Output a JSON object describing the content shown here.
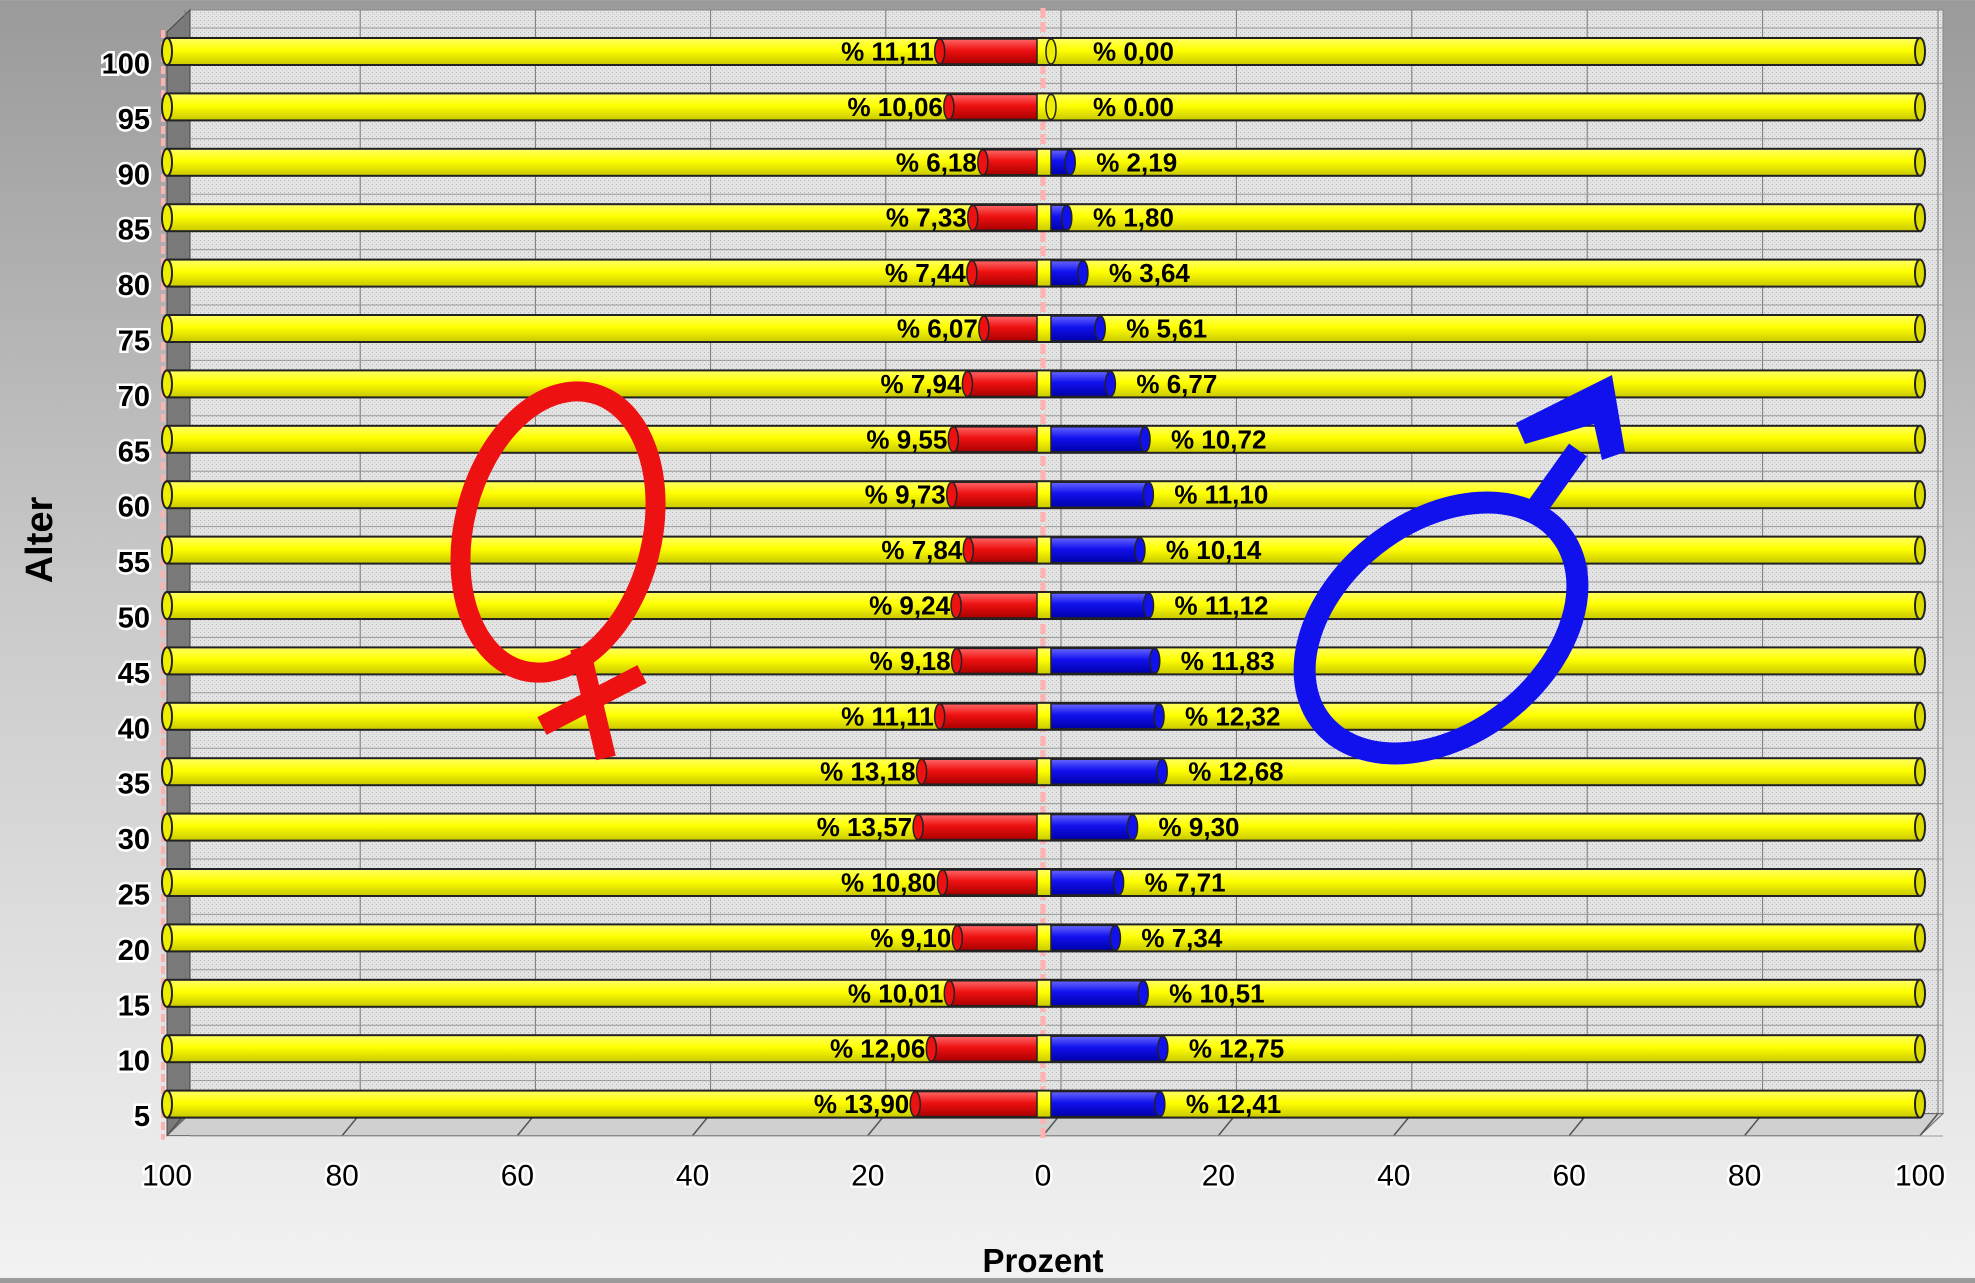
{
  "chart_data": {
    "type": "bar",
    "orientation": "horizontal-butterfly",
    "title": "",
    "xlabel": "Prozent",
    "ylabel": "Alter",
    "categories": [
      "5",
      "10",
      "15",
      "20",
      "25",
      "30",
      "35",
      "40",
      "45",
      "50",
      "55",
      "60",
      "65",
      "70",
      "75",
      "80",
      "85",
      "90",
      "95",
      "100"
    ],
    "x_ticks": [
      "100",
      "80",
      "60",
      "40",
      "20",
      "0",
      "20",
      "40",
      "60",
      "80",
      "100"
    ],
    "x_range_left": [
      100,
      0
    ],
    "x_range_right": [
      0,
      100
    ],
    "grid": true,
    "series": [
      {
        "side": "left",
        "color": "#ee1111",
        "values": [
          13.9,
          12.06,
          10.01,
          9.1,
          10.8,
          13.57,
          13.18,
          11.11,
          9.18,
          9.24,
          7.84,
          9.73,
          9.55,
          7.94,
          6.07,
          7.44,
          7.33,
          6.18,
          10.06,
          11.11
        ],
        "labels": [
          "% 13,90",
          "% 12,06",
          "% 10,01",
          "% 9,10",
          "% 10,80",
          "% 13,57",
          "% 13,18",
          "% 11,11",
          "% 9,18",
          "% 9,24",
          "% 7,84",
          "% 9,73",
          "% 9,55",
          "% 7,94",
          "% 6,07",
          "% 7,44",
          "% 7,33",
          "% 6,18",
          "% 10,06",
          "% 11,11"
        ]
      },
      {
        "side": "right",
        "color": "#1111ee",
        "values": [
          12.41,
          12.75,
          10.51,
          7.34,
          7.71,
          9.3,
          12.68,
          12.32,
          11.83,
          11.12,
          10.14,
          11.1,
          10.72,
          6.77,
          5.61,
          3.64,
          1.8,
          2.19,
          0.0,
          0.0
        ],
        "labels": [
          "% 12,41",
          "% 12,75",
          "% 10,51",
          "% 7,34",
          "% 7,71",
          "% 9,30",
          "% 12,68",
          "% 12,32",
          "% 11,83",
          "% 11,12",
          "% 10,14",
          "% 11,10",
          "% 10,72",
          "% 6,77",
          "% 5,61",
          "% 3,64",
          "% 1,80",
          "% 2,19",
          "% 0.00",
          "% 0,00"
        ]
      }
    ],
    "background_bar_color": "#ffff00",
    "symbols": {
      "female": {
        "icon": "female-symbol-icon",
        "color": "#ee1111"
      },
      "male": {
        "icon": "male-symbol-icon",
        "color": "#1111ee"
      }
    }
  }
}
